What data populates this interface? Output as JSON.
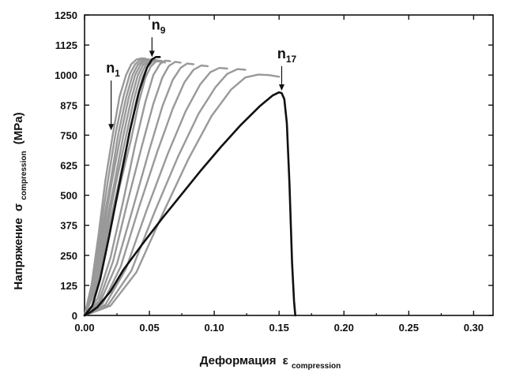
{
  "chart_data": {
    "type": "line",
    "title": "",
    "xlabel": "Деформация",
    "xlabel_symbol": "ε",
    "xlabel_subscript": "compression",
    "ylabel": "Напряжение",
    "ylabel_symbol": "σ",
    "ylabel_subscript": "compression",
    "ylabel_unit": "(MPa)",
    "xlim": [
      0,
      0.315
    ],
    "ylim": [
      0,
      1250
    ],
    "xticks": [
      "0.00",
      "0.05",
      "0.10",
      "0.15",
      "0.20",
      "0.25",
      "0.30"
    ],
    "yticks": [
      "0",
      "125",
      "250",
      "375",
      "500",
      "625",
      "750",
      "875",
      "1000",
      "1125",
      "1250"
    ],
    "grid": false,
    "legend": "none",
    "colors": {
      "highlight": "#111111",
      "other": "#999999"
    },
    "series": [
      {
        "highlight": false,
        "x": [
          0,
          0.0055,
          0.011,
          0.016,
          0.022,
          0.027,
          0.032,
          0.036,
          0.04,
          0.044,
          0.047,
          0.049
        ],
        "y": [
          0,
          130,
          345,
          560,
          760,
          910,
          1000,
          1045,
          1065,
          1070,
          1068,
          1063
        ]
      },
      {
        "highlight": false,
        "x": [
          0,
          0.006,
          0.012,
          0.018,
          0.024,
          0.03,
          0.035,
          0.039,
          0.043,
          0.047,
          0.05
        ],
        "y": [
          0,
          130,
          345,
          560,
          760,
          910,
          1005,
          1045,
          1065,
          1068,
          1062
        ]
      },
      {
        "highlight": false,
        "x": [
          0,
          0.0065,
          0.013,
          0.02,
          0.026,
          0.032,
          0.037,
          0.041,
          0.045,
          0.049,
          0.052
        ],
        "y": [
          0,
          125,
          340,
          555,
          755,
          905,
          1000,
          1043,
          1063,
          1066,
          1060
        ]
      },
      {
        "highlight": false,
        "x": [
          0,
          0.007,
          0.014,
          0.021,
          0.028,
          0.034,
          0.039,
          0.043,
          0.047,
          0.051,
          0.054
        ],
        "y": [
          0,
          125,
          340,
          555,
          755,
          905,
          1000,
          1042,
          1062,
          1065,
          1058
        ]
      },
      {
        "highlight": false,
        "x": [
          0,
          0.0075,
          0.015,
          0.023,
          0.03,
          0.036,
          0.041,
          0.045,
          0.049,
          0.053,
          0.056
        ],
        "y": [
          0,
          120,
          335,
          550,
          750,
          900,
          998,
          1041,
          1061,
          1064,
          1057
        ]
      },
      {
        "highlight": false,
        "x": [
          0,
          0.008,
          0.016,
          0.024,
          0.032,
          0.038,
          0.043,
          0.047,
          0.051,
          0.055,
          0.058
        ],
        "y": [
          0,
          120,
          330,
          545,
          745,
          898,
          996,
          1040,
          1060,
          1063,
          1055
        ]
      },
      {
        "highlight": false,
        "x": [
          0,
          0.0085,
          0.017,
          0.026,
          0.034,
          0.04,
          0.045,
          0.049,
          0.053,
          0.057,
          0.06
        ],
        "y": [
          0,
          115,
          325,
          540,
          740,
          895,
          995,
          1038,
          1058,
          1061,
          1053
        ]
      },
      {
        "highlight": false,
        "x": [
          0,
          0.009,
          0.018,
          0.027,
          0.036,
          0.042,
          0.047,
          0.051,
          0.055,
          0.059,
          0.062
        ],
        "y": [
          0,
          110,
          320,
          535,
          735,
          890,
          990,
          1035,
          1056,
          1060,
          1052
        ]
      },
      {
        "highlight": true,
        "x": [
          0,
          0.006,
          0.012,
          0.019,
          0.027,
          0.035,
          0.042,
          0.048,
          0.052,
          0.055,
          0.058
        ],
        "y": [
          0,
          40,
          150,
          330,
          550,
          770,
          930,
          1030,
          1065,
          1075,
          1075
        ]
      },
      {
        "highlight": false,
        "x": [
          0,
          0.01,
          0.02,
          0.03,
          0.039,
          0.047,
          0.053,
          0.058,
          0.062,
          0.066
        ],
        "y": [
          0,
          70,
          240,
          480,
          710,
          890,
          1000,
          1045,
          1060,
          1058
        ]
      },
      {
        "highlight": false,
        "x": [
          0,
          0.011,
          0.022,
          0.033,
          0.044,
          0.053,
          0.06,
          0.065,
          0.07,
          0.074
        ],
        "y": [
          0,
          60,
          225,
          470,
          700,
          880,
          990,
          1038,
          1055,
          1052
        ]
      },
      {
        "highlight": false,
        "x": [
          0,
          0.012,
          0.025,
          0.038,
          0.05,
          0.06,
          0.068,
          0.074,
          0.079,
          0.084
        ],
        "y": [
          0,
          55,
          215,
          460,
          690,
          870,
          980,
          1030,
          1048,
          1045
        ]
      },
      {
        "highlight": false,
        "x": [
          0,
          0.014,
          0.028,
          0.042,
          0.056,
          0.068,
          0.077,
          0.084,
          0.09,
          0.095
        ],
        "y": [
          0,
          50,
          205,
          450,
          680,
          860,
          970,
          1022,
          1040,
          1037
        ]
      },
      {
        "highlight": false,
        "x": [
          0,
          0.016,
          0.032,
          0.048,
          0.064,
          0.078,
          0.089,
          0.097,
          0.104,
          0.11
        ],
        "y": [
          0,
          45,
          195,
          440,
          670,
          850,
          960,
          1012,
          1030,
          1027
        ]
      },
      {
        "highlight": false,
        "x": [
          0,
          0.018,
          0.036,
          0.054,
          0.072,
          0.088,
          0.101,
          0.11,
          0.118,
          0.124
        ],
        "y": [
          0,
          42,
          185,
          430,
          660,
          840,
          950,
          1005,
          1025,
          1022
        ]
      },
      {
        "highlight": false,
        "x": [
          0,
          0.02,
          0.04,
          0.06,
          0.08,
          0.098,
          0.113,
          0.124,
          0.134,
          0.142,
          0.15
        ],
        "y": [
          0,
          40,
          180,
          420,
          650,
          830,
          940,
          990,
          1002,
          1000,
          993
        ]
      },
      {
        "highlight": true,
        "x": [
          0,
          0.005,
          0.01,
          0.02,
          0.03,
          0.045,
          0.06,
          0.075,
          0.09,
          0.105,
          0.12,
          0.135,
          0.145,
          0.15,
          0.152,
          0.154,
          0.156,
          0.158,
          0.16,
          0.1615,
          0.1625
        ],
        "y": [
          0,
          15,
          35,
          100,
          190,
          300,
          405,
          505,
          605,
          700,
          790,
          870,
          915,
          928,
          925,
          900,
          800,
          550,
          220,
          60,
          0
        ]
      }
    ],
    "annotations": [
      {
        "label": "n",
        "subscript": "1",
        "x": 0.022,
        "y": 1010,
        "arrow_to_x": 0.0205,
        "arrow_to_y": 770
      },
      {
        "label": "n",
        "subscript": "9",
        "x": 0.057,
        "y": 1190,
        "arrow_to_x": 0.052,
        "arrow_to_y": 1075
      },
      {
        "label": "n",
        "subscript": "17",
        "x": 0.156,
        "y": 1070,
        "arrow_to_x": 0.152,
        "arrow_to_y": 935
      }
    ]
  }
}
